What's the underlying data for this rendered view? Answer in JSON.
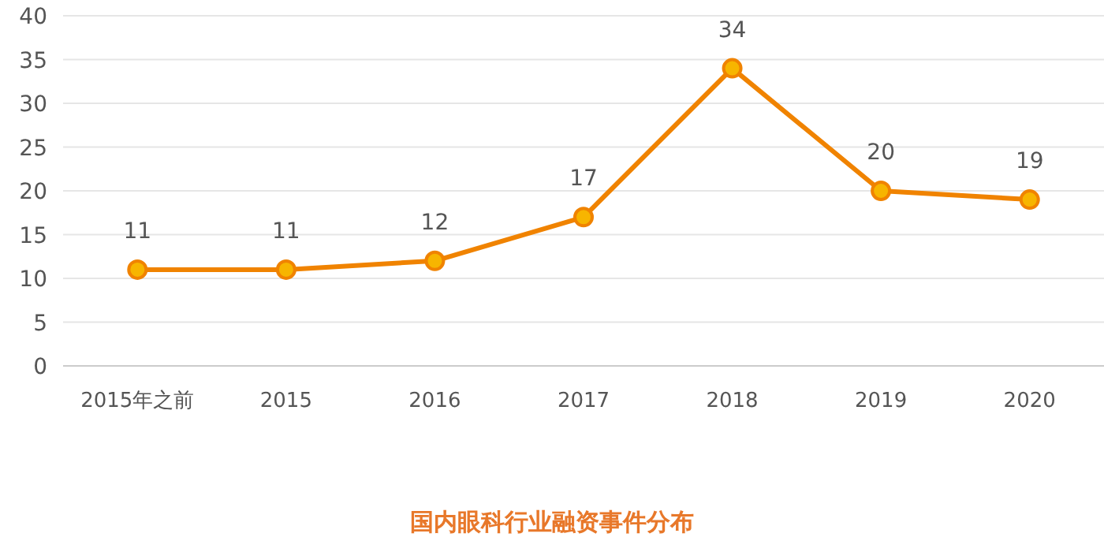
{
  "chart_data": {
    "type": "line",
    "title": "国内眼科行业融资事件分布",
    "categories": [
      "2015年之前",
      "2015",
      "2016",
      "2017",
      "2018",
      "2019",
      "2020"
    ],
    "series": [
      {
        "color": "#f08300",
        "values": [
          11,
          11,
          12,
          17,
          34,
          20,
          19
        ]
      }
    ],
    "ylim": [
      0,
      40
    ],
    "yticks": [
      0,
      5,
      10,
      15,
      20,
      25,
      30,
      35,
      40
    ],
    "grid": "y",
    "marker": "circle",
    "line_style": "solid",
    "data_labels": true
  }
}
